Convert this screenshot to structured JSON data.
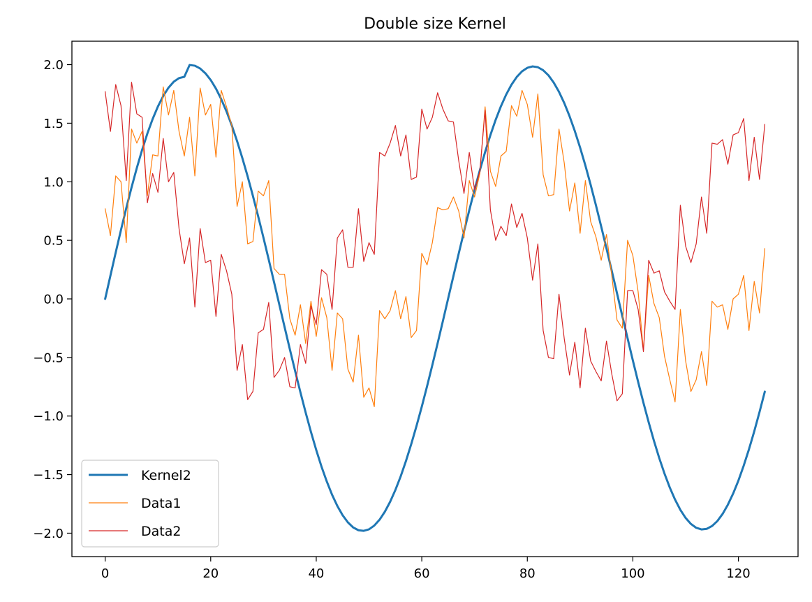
{
  "chart_data": {
    "type": "line",
    "title": "Double size Kernel",
    "xlabel": "",
    "ylabel": "",
    "xlim": [
      -6.3,
      131.3
    ],
    "ylim": [
      -2.2,
      2.2
    ],
    "xticks": [
      0,
      20,
      40,
      60,
      80,
      100,
      120
    ],
    "xtick_labels": [
      "0",
      "20",
      "40",
      "60",
      "80",
      "100",
      "120"
    ],
    "yticks": [
      -2.0,
      -1.5,
      -1.0,
      -0.5,
      0.0,
      0.5,
      1.0,
      1.5,
      2.0
    ],
    "ytick_labels": [
      "−2.0",
      "−1.5",
      "−1.0",
      "−0.5",
      "0.0",
      "0.5",
      "1.0",
      "1.5",
      "2.0"
    ],
    "grid": false,
    "legend_position": "lower-left",
    "series": [
      {
        "name": "Kernel2",
        "color": "#1f77b4",
        "linewidth": 3,
        "x_start": 0,
        "values": [
          0.0,
          0.199,
          0.396,
          0.589,
          0.775,
          0.952,
          1.118,
          1.272,
          1.412,
          1.536,
          1.643,
          1.732,
          1.803,
          1.854,
          1.885,
          1.896,
          1.997,
          1.991,
          1.967,
          1.926,
          1.869,
          1.795,
          1.705,
          1.6,
          1.48,
          1.347,
          1.202,
          1.046,
          0.879,
          0.704,
          0.522,
          0.335,
          0.144,
          -0.048,
          -0.24,
          -0.43,
          -0.616,
          -0.797,
          -0.971,
          -1.136,
          -1.29,
          -1.432,
          -1.559,
          -1.672,
          -1.768,
          -1.847,
          -1.908,
          -1.951,
          -1.975,
          -1.98,
          -1.967,
          -1.935,
          -1.885,
          -1.817,
          -1.732,
          -1.631,
          -1.515,
          -1.384,
          -1.24,
          -1.085,
          -0.92,
          -0.746,
          -0.565,
          -0.379,
          -0.189,
          0.004,
          0.196,
          0.387,
          0.575,
          0.757,
          0.932,
          1.098,
          1.254,
          1.398,
          1.529,
          1.645,
          1.745,
          1.829,
          1.895,
          1.943,
          1.973,
          1.985,
          1.978,
          1.952,
          1.909,
          1.847,
          1.768,
          1.672,
          1.56,
          1.433,
          1.292,
          1.139,
          0.974,
          0.8,
          0.618,
          0.431,
          0.24,
          0.047,
          -0.146,
          -0.337,
          -0.526,
          -0.709,
          -0.886,
          -1.054,
          -1.212,
          -1.359,
          -1.492,
          -1.611,
          -1.714,
          -1.801,
          -1.87,
          -1.921,
          -1.954,
          -1.968,
          -1.963,
          -1.939,
          -1.897,
          -1.836,
          -1.757,
          -1.662,
          -1.551,
          -1.424,
          -1.284,
          -1.131,
          -0.966,
          -0.792
        ]
      },
      {
        "name": "Data1",
        "color": "#ff7f0e",
        "linewidth": 1.2,
        "x_start": 0,
        "values": [
          0.77,
          0.54,
          1.05,
          1.0,
          0.48,
          1.45,
          1.33,
          1.43,
          0.88,
          1.23,
          1.22,
          1.81,
          1.57,
          1.78,
          1.43,
          1.22,
          1.55,
          1.05,
          1.8,
          1.57,
          1.66,
          1.21,
          1.78,
          1.64,
          1.48,
          0.79,
          1.0,
          0.47,
          0.49,
          0.92,
          0.88,
          1.01,
          0.26,
          0.21,
          0.21,
          -0.17,
          -0.31,
          -0.05,
          -0.38,
          -0.02,
          -0.32,
          0.01,
          -0.16,
          -0.61,
          -0.12,
          -0.17,
          -0.6,
          -0.71,
          -0.31,
          -0.84,
          -0.76,
          -0.92,
          -0.1,
          -0.17,
          -0.1,
          0.07,
          -0.17,
          0.02,
          -0.33,
          -0.27,
          0.39,
          0.29,
          0.48,
          0.78,
          0.76,
          0.77,
          0.87,
          0.75,
          0.52,
          1.01,
          0.87,
          1.07,
          1.64,
          1.09,
          0.96,
          1.22,
          1.26,
          1.65,
          1.56,
          1.78,
          1.66,
          1.38,
          1.75,
          1.06,
          0.88,
          0.89,
          1.45,
          1.16,
          0.75,
          0.99,
          0.56,
          1.01,
          0.66,
          0.53,
          0.33,
          0.55,
          0.2,
          -0.18,
          -0.25,
          0.5,
          0.37,
          0.06,
          -0.44,
          0.2,
          -0.04,
          -0.16,
          -0.49,
          -0.69,
          -0.88,
          -0.09,
          -0.53,
          -0.79,
          -0.69,
          -0.45,
          -0.74,
          -0.02,
          -0.07,
          -0.05,
          -0.26,
          0.0,
          0.04,
          0.2,
          -0.27,
          0.15,
          -0.12,
          0.43
        ]
      },
      {
        "name": "Data2",
        "color": "#d62728",
        "linewidth": 1.2,
        "x_start": 0,
        "values": [
          1.77,
          1.43,
          1.83,
          1.65,
          1.01,
          1.85,
          1.58,
          1.55,
          0.82,
          1.07,
          0.91,
          1.37,
          1.0,
          1.08,
          0.6,
          0.3,
          0.52,
          -0.07,
          0.6,
          0.31,
          0.33,
          -0.15,
          0.38,
          0.24,
          0.04,
          -0.61,
          -0.39,
          -0.86,
          -0.79,
          -0.29,
          -0.26,
          -0.03,
          -0.67,
          -0.61,
          -0.5,
          -0.75,
          -0.76,
          -0.39,
          -0.55,
          -0.06,
          -0.22,
          0.25,
          0.21,
          -0.09,
          0.52,
          0.59,
          0.27,
          0.27,
          0.77,
          0.32,
          0.48,
          0.38,
          1.25,
          1.22,
          1.33,
          1.48,
          1.22,
          1.4,
          1.02,
          1.04,
          1.62,
          1.45,
          1.55,
          1.76,
          1.62,
          1.52,
          1.51,
          1.18,
          0.9,
          1.25,
          0.93,
          1.09,
          1.61,
          0.76,
          0.5,
          0.62,
          0.54,
          0.81,
          0.61,
          0.73,
          0.52,
          0.16,
          0.47,
          -0.27,
          -0.5,
          -0.51,
          0.04,
          -0.34,
          -0.65,
          -0.37,
          -0.76,
          -0.25,
          -0.53,
          -0.62,
          -0.7,
          -0.36,
          -0.64,
          -0.87,
          -0.81,
          0.07,
          0.07,
          -0.09,
          -0.45,
          0.33,
          0.22,
          0.24,
          0.06,
          -0.02,
          -0.09,
          0.8,
          0.45,
          0.31,
          0.47,
          0.87,
          0.56,
          1.33,
          1.32,
          1.36,
          1.15,
          1.4,
          1.42,
          1.54,
          1.01,
          1.38,
          1.02,
          1.49
        ]
      }
    ]
  }
}
